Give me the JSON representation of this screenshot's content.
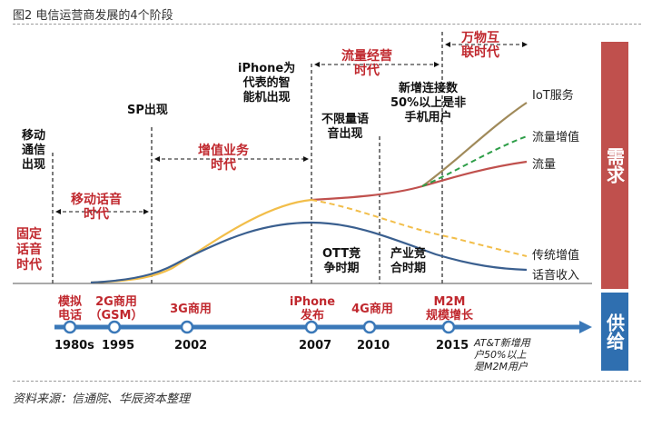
{
  "title": "图2 电信运营商发展的4个阶段",
  "source": "资料来源：信通院、华辰资本整理",
  "demand_label": "需求",
  "supply_label": "供给",
  "stages": {
    "fixed": [
      "固定",
      "话音",
      "时代"
    ],
    "mobile_voice": [
      "移动话音",
      "时代"
    ],
    "value_added": [
      "增值业务",
      "时代"
    ],
    "traffic": [
      "流量经营",
      "时代"
    ],
    "iot": [
      "万物互",
      "联时代"
    ]
  },
  "milestones": {
    "mobile_comm": [
      "移动",
      "通信",
      "出现"
    ],
    "sp": [
      "SP出现"
    ],
    "iphone_smart": [
      "iPhone为",
      "代表的智",
      "能机出现"
    ],
    "unlimited": [
      "不限量语",
      "音出现"
    ],
    "new_conn": [
      "新增连接数",
      "50%以上是非",
      "手机用户"
    ],
    "ott": [
      "OTT竞",
      "争时期"
    ],
    "industry": [
      "产业竞",
      "合时期"
    ]
  },
  "series_labels": {
    "iot": "IoT服务",
    "traffic_growth": "流量增值",
    "traffic": "流量",
    "traditional": "传统增值",
    "voice": "话音收入"
  },
  "timeline": [
    {
      "event": [
        "模拟",
        "电话"
      ],
      "year": "1980s"
    },
    {
      "event": [
        "2G商用",
        "（GSM）"
      ],
      "year": "1995"
    },
    {
      "event": [
        "3G商用"
      ],
      "year": "2002"
    },
    {
      "event": [
        "iPhone",
        "发布"
      ],
      "year": "2007"
    },
    {
      "event": [
        "4G商用"
      ],
      "year": "2010"
    },
    {
      "event": [
        "M2M",
        "规模增长"
      ],
      "year": "2015"
    }
  ],
  "timeline_note": [
    "AT&T新增用",
    "户50%以上",
    "是M2M用户"
  ],
  "colors": {
    "accent_red": "#c0282e",
    "timeline_blue": "#3a78b8",
    "demand_box": "#c0504d",
    "supply_box": "#2f6fb0",
    "iot_line": "#a08a5a",
    "growth_line": "#2e9e48",
    "traffic_line": "#c0504d",
    "traditional_line": "#f2be4a",
    "voice_line": "#3a5f8f"
  }
}
